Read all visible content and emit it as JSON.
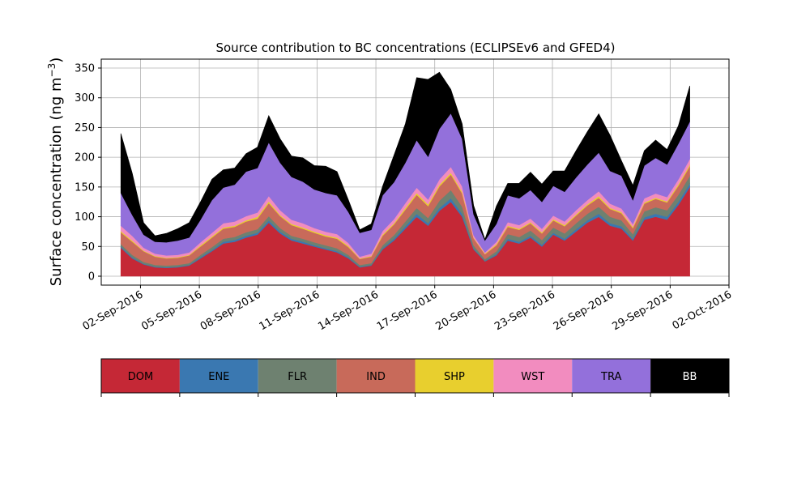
{
  "chart_data": {
    "type": "area",
    "stacked": true,
    "title": "Source contribution to BC concentrations (ECLIPSEv6 and GFED4)",
    "ylabel": "Surface concentration (ng m",
    "ylabel_sup": "−3",
    "ylabel_close": ")",
    "xlabel": "",
    "x_start": "2016-09-01",
    "x_end": "2016-09-30",
    "xlim": [
      "2016-08-31",
      "2016-10-02"
    ],
    "ylim": [
      -15,
      365
    ],
    "yticks": [
      0,
      50,
      100,
      150,
      200,
      250,
      300,
      350
    ],
    "xticks": [
      "02-Sep-2016",
      "05-Sep-2016",
      "08-Sep-2016",
      "11-Sep-2016",
      "14-Sep-2016",
      "17-Sep-2016",
      "20-Sep-2016",
      "23-Sep-2016",
      "26-Sep-2016",
      "29-Sep-2016",
      "02-Oct-2016"
    ],
    "grid": true,
    "legend": "bottom colorbar",
    "series": [
      {
        "name": "DOM",
        "color": "#c52836",
        "values": [
          48,
          30,
          20,
          15,
          14,
          15,
          18,
          30,
          42,
          55,
          58,
          65,
          70,
          90,
          72,
          60,
          55,
          50,
          45,
          40,
          30,
          15,
          18,
          45,
          60,
          80,
          100,
          85,
          110,
          125,
          100,
          45,
          25,
          35,
          60,
          55,
          65,
          50,
          70,
          60,
          75,
          90,
          100,
          85,
          80,
          60,
          95,
          100,
          95,
          120,
          150
        ]
      },
      {
        "name": "ENE",
        "color": "#3a78b1",
        "values": [
          2,
          2,
          1,
          1,
          1,
          1,
          1,
          2,
          2,
          3,
          3,
          3,
          3,
          4,
          3,
          3,
          3,
          2,
          2,
          2,
          2,
          1,
          1,
          2,
          3,
          4,
          5,
          4,
          5,
          6,
          5,
          2,
          1,
          2,
          3,
          3,
          3,
          3,
          3,
          3,
          4,
          4,
          5,
          4,
          4,
          3,
          4,
          5,
          5,
          5,
          6
        ]
      },
      {
        "name": "FLR",
        "color": "#6e8170",
        "values": [
          4,
          4,
          3,
          3,
          3,
          3,
          3,
          4,
          5,
          5,
          5,
          6,
          6,
          7,
          6,
          5,
          5,
          5,
          5,
          5,
          4,
          3,
          3,
          5,
          6,
          8,
          10,
          9,
          12,
          14,
          12,
          5,
          3,
          5,
          8,
          8,
          9,
          8,
          9,
          9,
          10,
          11,
          12,
          11,
          10,
          8,
          10,
          11,
          11,
          12,
          13
        ]
      },
      {
        "name": "IND",
        "color": "#c86a5a",
        "values": [
          20,
          22,
          18,
          14,
          12,
          12,
          13,
          14,
          16,
          17,
          17,
          18,
          18,
          22,
          20,
          18,
          17,
          16,
          15,
          16,
          13,
          10,
          11,
          16,
          18,
          20,
          22,
          20,
          24,
          26,
          22,
          12,
          8,
          10,
          12,
          12,
          12,
          11,
          12,
          12,
          13,
          14,
          15,
          13,
          12,
          10,
          13,
          14,
          13,
          15,
          16
        ]
      },
      {
        "name": "SHP",
        "color": "#e8cf2e",
        "values": [
          2,
          2,
          1,
          1,
          1,
          1,
          1,
          2,
          2,
          2,
          2,
          2,
          3,
          3,
          2,
          2,
          2,
          2,
          2,
          2,
          2,
          1,
          1,
          2,
          2,
          3,
          3,
          3,
          3,
          3,
          3,
          1,
          1,
          2,
          2,
          2,
          2,
          2,
          2,
          2,
          2,
          2,
          3,
          2,
          2,
          2,
          2,
          2,
          2,
          3,
          3
        ]
      },
      {
        "name": "WST",
        "color": "#f28cbf",
        "values": [
          9,
          8,
          5,
          4,
          4,
          4,
          4,
          5,
          6,
          7,
          7,
          7,
          7,
          9,
          8,
          7,
          7,
          6,
          6,
          6,
          5,
          3,
          4,
          6,
          7,
          8,
          9,
          8,
          9,
          10,
          9,
          4,
          2,
          4,
          6,
          6,
          6,
          6,
          6,
          6,
          7,
          7,
          8,
          7,
          6,
          5,
          7,
          7,
          7,
          8,
          9
        ]
      },
      {
        "name": "TRA",
        "color": "#9370db",
        "values": [
          55,
          35,
          22,
          20,
          22,
          24,
          25,
          38,
          55,
          60,
          62,
          75,
          75,
          90,
          80,
          72,
          70,
          65,
          65,
          65,
          52,
          40,
          40,
          60,
          62,
          68,
          80,
          72,
          85,
          90,
          80,
          35,
          20,
          30,
          45,
          45,
          48,
          45,
          50,
          50,
          55,
          60,
          65,
          55,
          55,
          40,
          55,
          60,
          55,
          60,
          63
        ]
      },
      {
        "name": "BB",
        "color": "#000000",
        "values": [
          100,
          70,
          20,
          10,
          15,
          20,
          25,
          30,
          35,
          30,
          28,
          30,
          35,
          45,
          40,
          35,
          40,
          40,
          45,
          40,
          20,
          5,
          10,
          15,
          45,
          65,
          105,
          130,
          95,
          40,
          25,
          15,
          2,
          30,
          20,
          25,
          30,
          30,
          25,
          35,
          45,
          55,
          65,
          60,
          25,
          25,
          25,
          30,
          25,
          30,
          60
        ]
      }
    ]
  }
}
